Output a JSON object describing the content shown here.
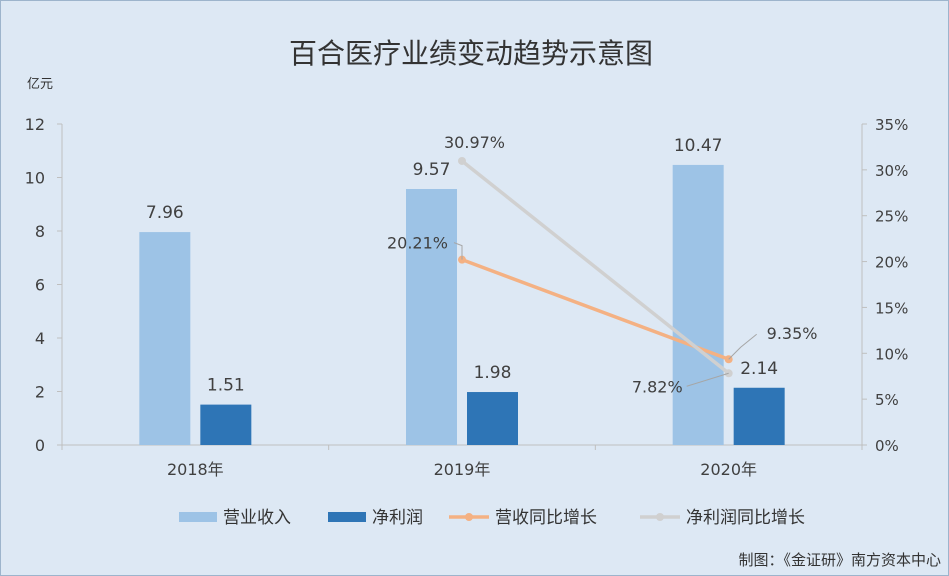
{
  "chart_data": {
    "type": "bar",
    "title": "百合医疗业绩变动趋势示意图",
    "ylabel": "亿元",
    "categories": [
      "2018年",
      "2019年",
      "2020年"
    ],
    "ylim": [
      0,
      12
    ],
    "yticks": [
      "0",
      "2",
      "4",
      "6",
      "8",
      "10",
      "12"
    ],
    "y2lim": [
      0,
      35
    ],
    "y2ticks": [
      "0%",
      "5%",
      "10%",
      "15%",
      "20%",
      "25%",
      "30%",
      "35%"
    ],
    "series": [
      {
        "name": "营业收入",
        "type": "bar",
        "axis": "left",
        "color": "#9dc3e6",
        "values": [
          7.96,
          9.57,
          10.47
        ],
        "labels": [
          "7.96",
          "9.57",
          "10.47"
        ]
      },
      {
        "name": "净利润",
        "type": "bar",
        "axis": "left",
        "color": "#2e75b6",
        "values": [
          1.51,
          1.98,
          2.14
        ],
        "labels": [
          "1.51",
          "1.98",
          "2.14"
        ]
      },
      {
        "name": "营收同比增长",
        "type": "line",
        "axis": "right",
        "color": "#f4b183",
        "values": [
          null,
          20.21,
          9.35
        ],
        "labels": [
          null,
          "20.21%",
          "9.35%"
        ]
      },
      {
        "name": "净利润同比增长",
        "type": "line",
        "axis": "right",
        "color": "#d0d0d0",
        "values": [
          null,
          30.97,
          7.82
        ],
        "labels": [
          null,
          "30.97%",
          "7.82%"
        ]
      }
    ],
    "grid": false,
    "legend": "bottom"
  },
  "credit": "制图：《金证研》南方资本中心"
}
